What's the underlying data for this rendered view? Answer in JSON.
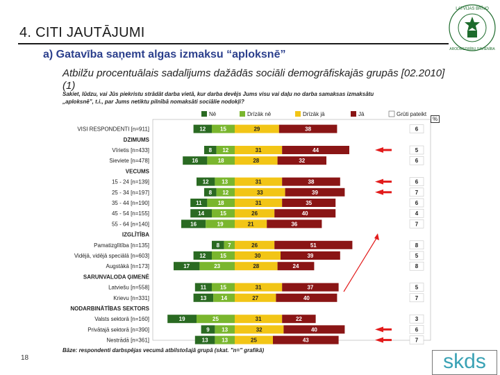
{
  "header": {
    "title": "4. CITI JAUTĀJUMI",
    "subtitle": "a) Gatavība saņemt algas izmaksu “aploksnē”",
    "description": "Atbilžu procentuālais sadalījums dažādās sociāli demogrāfiskajās grupās [02.2010] (1)",
    "question": "Sakiet, lūdzu, vai Jūs piekristu strādāt darba vietā, kur darba devējs Jums visu vai daļu no darba samaksas izmaksātu „aploksnē”, t.i., par Jums netiktu pilnībā nomaksāti sociālie nodokļi?",
    "pct_label": "%"
  },
  "footer": {
    "note": "Bāze: respondenti darbspējas vecumā atbilstošajā grupā (skat. \"n=\" grafikā)",
    "page_number": "18",
    "logo_text": "skds"
  },
  "seal": {
    "text_top": "LATVIJAS BRĪVO",
    "text_bottom": "ARODBIEDRĪBU SAVIENĪBA"
  },
  "chart_data": {
    "type": "bar",
    "stacked": "diverging",
    "legend_position": "top",
    "series": [
      {
        "name": "Nē",
        "color": "#2a6a22"
      },
      {
        "name": "Drīzāk nē",
        "color": "#7ab62e"
      },
      {
        "name": "Drīzāk jā",
        "color": "#f2c516"
      },
      {
        "name": "Jā",
        "color": "#8a1515"
      },
      {
        "name": "Grūti pateikt",
        "color": "#ffffff"
      }
    ],
    "rows": [
      {
        "label": "VISI RESPONDENTI [n=911]",
        "values": [
          12,
          15,
          29,
          38,
          6
        ],
        "kind": "data"
      },
      {
        "label": "DZIMUMS",
        "kind": "heading"
      },
      {
        "label": "Vīrietis [n=433]",
        "values": [
          8,
          12,
          31,
          44,
          5
        ],
        "kind": "data",
        "arrow": true
      },
      {
        "label": "Sieviete [n=478]",
        "values": [
          16,
          18,
          28,
          32,
          6
        ],
        "kind": "data"
      },
      {
        "label": "VECUMS",
        "kind": "heading"
      },
      {
        "label": "15 - 24 [n=139]",
        "values": [
          12,
          13,
          31,
          38,
          6
        ],
        "kind": "data",
        "arrow": true
      },
      {
        "label": "25 - 34 [n=197]",
        "values": [
          8,
          12,
          33,
          39,
          7
        ],
        "kind": "data",
        "arrow": true
      },
      {
        "label": "35 - 44 [n=190]",
        "values": [
          11,
          18,
          31,
          35,
          6
        ],
        "kind": "data"
      },
      {
        "label": "45 - 54 [n=155]",
        "values": [
          14,
          15,
          26,
          40,
          4
        ],
        "kind": "data"
      },
      {
        "label": "55 - 64 [n=140]",
        "values": [
          16,
          19,
          21,
          36,
          7
        ],
        "kind": "data"
      },
      {
        "label": "IZGLĪTĪBA",
        "kind": "heading"
      },
      {
        "label": "Pamatizglītība [n=135]",
        "values": [
          8,
          7,
          26,
          51,
          8
        ],
        "kind": "data"
      },
      {
        "label": "Vidējā, vidējā speciālā [n=603]",
        "values": [
          12,
          15,
          30,
          39,
          5
        ],
        "kind": "data"
      },
      {
        "label": "Augstākā [n=173]",
        "values": [
          17,
          23,
          28,
          24,
          8
        ],
        "kind": "data"
      },
      {
        "label": "SARUNVALODA ĢIMENĒ",
        "kind": "heading"
      },
      {
        "label": "Latviešu [n=558]",
        "values": [
          11,
          15,
          31,
          37,
          5
        ],
        "kind": "data"
      },
      {
        "label": "Krievu [n=331]",
        "values": [
          13,
          14,
          27,
          40,
          7
        ],
        "kind": "data"
      },
      {
        "label": "NODARBINĀTĪBAS SEKTORS",
        "kind": "heading"
      },
      {
        "label": "Valsts sektorā [n=160]",
        "values": [
          19,
          25,
          31,
          22,
          3
        ],
        "kind": "data"
      },
      {
        "label": "Privātajā sektorā [n=390]",
        "values": [
          9,
          13,
          32,
          40,
          6
        ],
        "kind": "data",
        "arrow": true
      },
      {
        "label": "Nestrādā [n=361]",
        "values": [
          13,
          13,
          25,
          43,
          7
        ],
        "kind": "data",
        "arrow": true
      }
    ]
  }
}
